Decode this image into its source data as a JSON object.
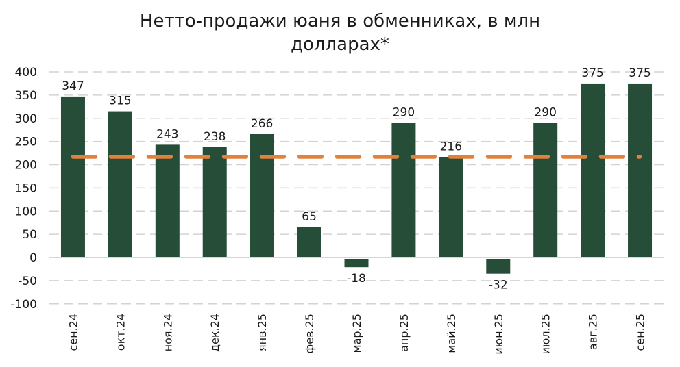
{
  "chart_data": {
    "type": "bar",
    "title": "Нетто-продажи юаня в обменниках, в млн долларах*",
    "title_lines": [
      "Нетто-продажи юаня в обменниках, в млн",
      "долларах*"
    ],
    "xlabel": "",
    "ylabel": "",
    "ylim": [
      -100,
      400
    ],
    "yticks": [
      400,
      350,
      300,
      250,
      200,
      150,
      100,
      50,
      0,
      -50,
      -100
    ],
    "grid": true,
    "legend": null,
    "categories": [
      "сен.24",
      "окт.24",
      "ноя.24",
      "дек.24",
      "янв.25",
      "фев.25",
      "мар.25",
      "апр.25",
      "май.25",
      "июн.25",
      "июл.25",
      "авг.25",
      "сен.25"
    ],
    "series": [
      {
        "name": "Нетто-продажи",
        "type": "bar",
        "color": "#264d38",
        "values": [
          347,
          315,
          243,
          238,
          266,
          65,
          -18,
          290,
          216,
          -32,
          290,
          375,
          375
        ]
      },
      {
        "name": "Среднее",
        "type": "line",
        "style": "dashed",
        "color": "#e0823d",
        "values": [
          217,
          217,
          217,
          217,
          217,
          217,
          217,
          217,
          217,
          217,
          217,
          217,
          217
        ]
      }
    ]
  },
  "colors": {
    "bar": "#264d38",
    "average_line": "#e0823d",
    "grid": "#d3d3d3",
    "text": "#1a1a1a"
  }
}
